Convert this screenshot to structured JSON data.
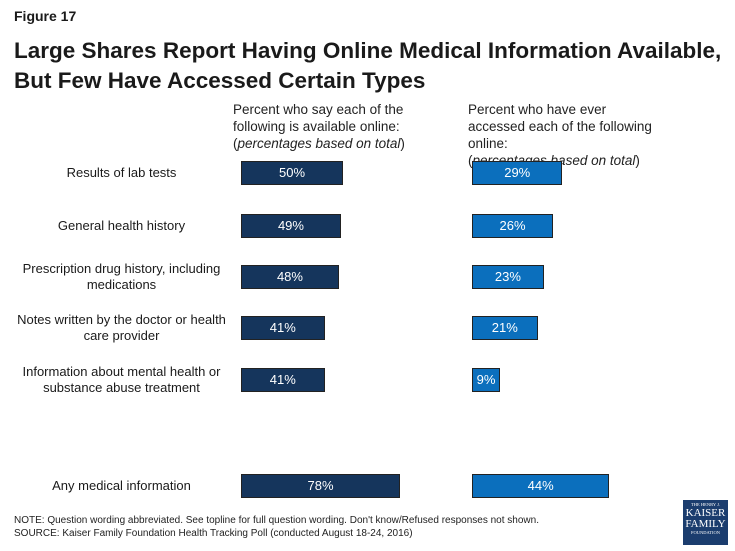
{
  "figure_label": "Figure 17",
  "chart_data": {
    "type": "bar",
    "orientation": "horizontal",
    "title": "Large Shares Report Having Online Medical Information Available, But Few Have Accessed Certain Types",
    "categories": [
      "Results of lab tests",
      "General health history",
      "Prescription drug history, including medications",
      "Notes written by the doctor or health care provider",
      "Information about mental health or substance abuse treatment",
      "Any medical information"
    ],
    "series": [
      {
        "name": "Percent who say each of the following is available online:",
        "note": "percentages based on total",
        "color": "#15355c",
        "values": [
          50,
          49,
          48,
          41,
          41,
          78
        ]
      },
      {
        "name": "Percent who have ever accessed each of the following online:",
        "note": "percentages based on total",
        "color": "#0b6fbd",
        "values": [
          29,
          26,
          23,
          21,
          9,
          44
        ]
      }
    ],
    "value_suffix": "%"
  },
  "footnote": {
    "note": "NOTE: Question wording abbreviated. See topline for full question wording. Don't know/Refused responses not shown.",
    "source": "SOURCE: Kaiser Family Foundation Health Tracking Poll (conducted August 18-24, 2016)"
  },
  "logo": {
    "line1": "THE HENRY J.",
    "line2": "KAISER",
    "line3": "FAMILY",
    "line4": "FOUNDATION"
  }
}
